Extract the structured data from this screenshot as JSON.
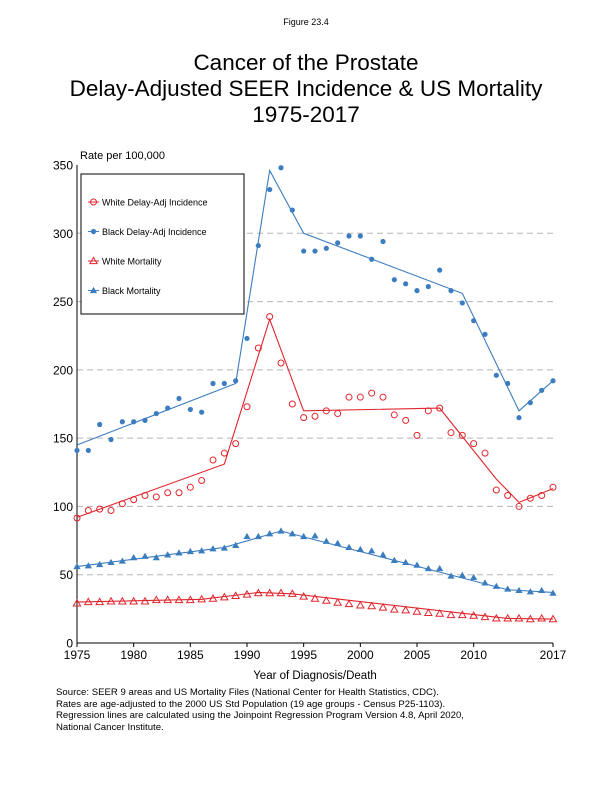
{
  "figure_label": "Figure 23.4",
  "chart_data": {
    "type": "line",
    "title": [
      "Cancer of the Prostate",
      "Delay-Adjusted SEER Incidence & US Mortality",
      "1975-2017"
    ],
    "ylabel": "Rate per 100,000",
    "xlabel": "Year of Diagnosis/Death",
    "xlim": [
      1975,
      2017
    ],
    "ylim": [
      0,
      350
    ],
    "xticks": [
      1975,
      1980,
      1985,
      1990,
      1995,
      2000,
      2005,
      2010,
      2017
    ],
    "yticks": [
      0,
      50,
      100,
      150,
      200,
      250,
      300,
      350
    ],
    "grid": "horizontal dashed",
    "legend_position": "top-left",
    "x": [
      1975,
      1976,
      1977,
      1978,
      1979,
      1980,
      1981,
      1982,
      1983,
      1984,
      1985,
      1986,
      1987,
      1988,
      1989,
      1990,
      1991,
      1992,
      1993,
      1994,
      1995,
      1996,
      1997,
      1998,
      1999,
      2000,
      2001,
      2002,
      2003,
      2004,
      2005,
      2006,
      2007,
      2008,
      2009,
      2010,
      2011,
      2012,
      2013,
      2014,
      2015,
      2016,
      2017
    ],
    "series": [
      {
        "name": "White Delay-Adj Incidence",
        "color": "#e0262d",
        "marker": "circle-open",
        "values": [
          91.5,
          97,
          98,
          97,
          102,
          105,
          108,
          107,
          110,
          110,
          114,
          119,
          134,
          139,
          146,
          173,
          216,
          239,
          205,
          175,
          165,
          166,
          170,
          168,
          180,
          180,
          183,
          180,
          167,
          163,
          152,
          170,
          172,
          154,
          152,
          146,
          139,
          112,
          108,
          100,
          106,
          108,
          114
        ],
        "trend": [
          [
            1975,
            92
          ],
          [
            1988,
            131
          ],
          [
            1992,
            237
          ],
          [
            1995,
            170
          ],
          [
            2007,
            172
          ],
          [
            2012,
            120
          ],
          [
            2014,
            103
          ],
          [
            2017,
            113
          ]
        ]
      },
      {
        "name": "Black Delay-Adj Incidence",
        "color": "#3b7dbf",
        "marker": "dot",
        "values": [
          141,
          141,
          160,
          149,
          162,
          162,
          163,
          168,
          172,
          179,
          171,
          169,
          190,
          190,
          192,
          223,
          291,
          332,
          348,
          317,
          287,
          287,
          289,
          293,
          298,
          298,
          281,
          294,
          266,
          263,
          258,
          261,
          273,
          258,
          249,
          236,
          226,
          196,
          190,
          165,
          176,
          185,
          192
        ],
        "trend": [
          [
            1975,
            145
          ],
          [
            1989,
            190
          ],
          [
            1992,
            346
          ],
          [
            1995,
            300
          ],
          [
            2009,
            256
          ],
          [
            2014,
            170
          ],
          [
            2017,
            192
          ]
        ]
      },
      {
        "name": "White Mortality",
        "color": "#e0262d",
        "marker": "triangle-open",
        "values": [
          29,
          30,
          30,
          30.5,
          30.5,
          30.5,
          30.5,
          31.5,
          31.5,
          31.5,
          31.5,
          32,
          32.5,
          33.5,
          34.5,
          35.5,
          36.5,
          36.5,
          36.5,
          36,
          34,
          32.5,
          31,
          29.5,
          28.5,
          27.5,
          27,
          26,
          24.5,
          24,
          23,
          22,
          21.5,
          20.5,
          20.5,
          20,
          19,
          18,
          18,
          18,
          17.5,
          18,
          17.5
        ],
        "trend": [
          [
            1975,
            30
          ],
          [
            1986,
            32
          ],
          [
            1991,
            37
          ],
          [
            1994,
            36
          ],
          [
            2013,
            18
          ],
          [
            2017,
            17.5
          ]
        ]
      },
      {
        "name": "Black Mortality",
        "color": "#3b7dbf",
        "marker": "triangle-filled",
        "values": [
          56,
          56.5,
          57.5,
          59,
          60,
          62.5,
          63.5,
          62.5,
          64.5,
          66,
          67,
          67.5,
          69,
          69.5,
          71.5,
          78,
          78,
          80,
          82,
          80,
          78,
          78.5,
          74.5,
          73,
          70,
          68.5,
          67.5,
          64.5,
          60.5,
          59,
          57,
          54.5,
          54.5,
          49,
          49.5,
          48,
          44,
          41.5,
          39.5,
          38.5,
          37.5,
          38.5,
          36.5
        ],
        "trend": [
          [
            1975,
            56
          ],
          [
            1988,
            70
          ],
          [
            1993,
            82
          ],
          [
            2013,
            39
          ],
          [
            2017,
            37
          ]
        ]
      }
    ]
  },
  "source_lines": [
    "Source: SEER 9 areas and US Mortality Files (National Center for Health Statistics, CDC).",
    "Rates are age-adjusted to the 2000 US Std Population (19 age groups - Census P25-1103).",
    "Regression lines are calculated using the Joinpoint Regression Program Version 4.8, April 2020,",
    "National Cancer Institute."
  ]
}
